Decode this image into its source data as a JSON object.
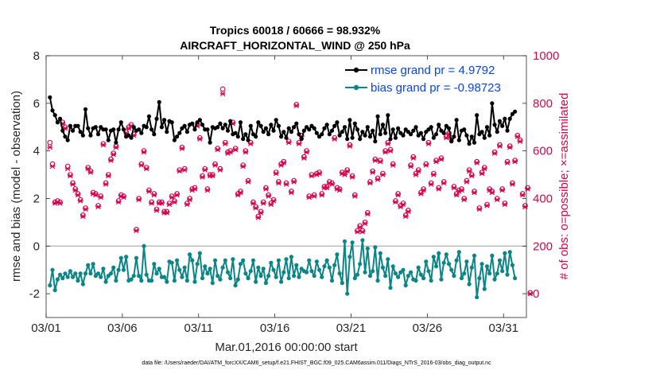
{
  "chart_data": {
    "type": "line",
    "title": "Tropics 60018 / 60666 = 98.932%",
    "subtitle": "AIRCRAFT_HORIZONTAL_WIND @ 250 hPa",
    "xlabel": "Mar.01,2016 00:00:00 start",
    "ylabel": "rmse and bias (model - observation)",
    "ylabel_right": "# of obs: o=possible; ×=assimilated",
    "ylim": [
      -3,
      8
    ],
    "yticks": [
      -2,
      0,
      2,
      4,
      6,
      8
    ],
    "ylim_right": [
      -100,
      1000
    ],
    "yticks_right": [
      0,
      200,
      400,
      600,
      800,
      1000
    ],
    "xlim": [
      0,
      31.5
    ],
    "xticks": [
      {
        "label": "03/01",
        "day": 0
      },
      {
        "label": "03/06",
        "day": 5
      },
      {
        "label": "03/11",
        "day": 10
      },
      {
        "label": "03/16",
        "day": 15
      },
      {
        "label": "03/21",
        "day": 20
      },
      {
        "label": "03/26",
        "day": 25
      },
      {
        "label": "03/31",
        "day": 30
      }
    ],
    "footnote": "data file: /Users/raeder/DAI/ATM_forcXX/CAM6_setup/f.e21.FHIST_BGC.f09_025.CAM6assim.011/Diags_NTrS_2016-03/obs_diag_output.nc",
    "series": [
      {
        "name": "rmse",
        "legend": "rmse grand pr = 4.9792",
        "color": "#000000",
        "axis": "left",
        "values": [
          6.25,
          5.7,
          5.5,
          5.2,
          5.35,
          4.85,
          4.6,
          4.45,
          5.05,
          4.85,
          5.05,
          5.05,
          4.8,
          4.65,
          5.75,
          4.95,
          4.65,
          4.95,
          5.0,
          4.7,
          5.0,
          4.9,
          4.9,
          4.45,
          4.85,
          4.9,
          4.35,
          4.9,
          5.2,
          4.9,
          4.6,
          4.65,
          4.55,
          5.0,
          4.85,
          4.9,
          4.75,
          5.05,
          5.0,
          5.45,
          4.9,
          4.7,
          5.35,
          6.05,
          5.0,
          5.3,
          4.8,
          5.25,
          5.2,
          4.45,
          4.6,
          4.75,
          4.95,
          5.05,
          4.8,
          5.1,
          5.15,
          4.9,
          5.2,
          5.3,
          5.1,
          4.9,
          4.9,
          4.35,
          5.0,
          4.95,
          5.0,
          5.15,
          4.95,
          5.1,
          4.85,
          5.25,
          4.7,
          4.75,
          4.6,
          5.2,
          4.5,
          4.7,
          4.45,
          5.05,
          4.7,
          4.6,
          5.2,
          5.05,
          4.8,
          4.95,
          4.7,
          5.1,
          4.85,
          5.3,
          5.05,
          4.6,
          4.8,
          4.55,
          4.95,
          4.8,
          5.0,
          5.15,
          4.7,
          4.5,
          4.85,
          5.0,
          4.9,
          5.05,
          4.95,
          4.75,
          4.6,
          4.7,
          4.95,
          5.1,
          4.7,
          4.85,
          5.05,
          5.2,
          4.65,
          4.8,
          5.0,
          4.5,
          5.3,
          4.55,
          5.15,
          4.9,
          4.5,
          4.8,
          4.65,
          5.0,
          4.6,
          4.85,
          4.4,
          5.45,
          4.7,
          5.1,
          4.75,
          5.5,
          4.5,
          4.9,
          4.55,
          4.95,
          4.75,
          4.65,
          4.9,
          4.8,
          4.7,
          4.85,
          5.0,
          4.65,
          4.75,
          4.5,
          4.8,
          4.9,
          5.0,
          4.55,
          4.7,
          5.1,
          4.85,
          4.75,
          5.05,
          4.95,
          4.4,
          4.6,
          5.3,
          4.45,
          4.85,
          4.9,
          4.65,
          4.3,
          4.6,
          4.35,
          5.5,
          4.7,
          4.8,
          4.55,
          5.0,
          4.65,
          6.0,
          5.1,
          4.8,
          5.25,
          5.05,
          5.35,
          4.85,
          5.35,
          5.55,
          5.65
        ]
      },
      {
        "name": "bias",
        "legend": "bias grand pr = -0.98723",
        "color": "#0b8585",
        "axis": "left",
        "values": [
          -1.65,
          -1.0,
          -1.85,
          -1.4,
          -1.2,
          -1.35,
          -1.15,
          -1.3,
          -1.05,
          -1.3,
          -1.15,
          -1.45,
          -1.15,
          -1.6,
          -1.15,
          -0.8,
          -1.15,
          -0.75,
          -1.25,
          -1.15,
          -1.3,
          -0.95,
          -1.5,
          -1.25,
          -1.15,
          -0.9,
          -1.45,
          -1.0,
          -0.5,
          -1.0,
          -0.45,
          -1.45,
          -1.4,
          -1.25,
          -0.5,
          -1.25,
          -1.45,
          0.0,
          -1.2,
          -1.45,
          -1.45,
          -0.75,
          -1.15,
          -0.95,
          -1.3,
          -1.3,
          -1.5,
          -0.65,
          -0.7,
          -1.45,
          -0.6,
          -1.0,
          -1.3,
          -0.9,
          -1.45,
          -0.35,
          -0.6,
          -1.5,
          -0.75,
          -0.3,
          -1.35,
          -0.85,
          -1.15,
          -0.95,
          -1.55,
          -0.6,
          -1.25,
          -1.4,
          -0.9,
          -0.6,
          -1.1,
          -1.35,
          -0.55,
          -1.65,
          -1.4,
          -0.75,
          -0.6,
          -1.15,
          -1.35,
          -1.05,
          -0.6,
          -1.5,
          -0.9,
          -1.25,
          -0.95,
          -1.55,
          -1.25,
          -0.7,
          -1.0,
          -1.3,
          -0.6,
          -1.5,
          -1.1,
          -0.55,
          -1.35,
          -0.45,
          -1.25,
          -0.8,
          -1.3,
          -0.95,
          -1.05,
          -1.1,
          -0.6,
          -1.05,
          -1.25,
          -0.65,
          -1.0,
          -1.3,
          -0.85,
          -0.6,
          -0.9,
          -1.45,
          -0.8,
          -0.35,
          -1.15,
          -1.55,
          0.2,
          -2.0,
          -0.45,
          0.15,
          -1.35,
          -1.2,
          -0.75,
          0.25,
          -1.1,
          -0.1,
          -1.25,
          -1.05,
          -0.05,
          -1.45,
          -0.3,
          -0.9,
          -1.25,
          -0.55,
          -1.75,
          -0.85,
          -1.15,
          -1.3,
          -1.1,
          -1.0,
          -1.65,
          -1.25,
          -1.1,
          -1.4,
          -1.45,
          -0.9,
          -1.2,
          -1.35,
          -0.65,
          -1.05,
          -1.45,
          -0.45,
          -0.85,
          -0.3,
          -1.4,
          -0.7,
          -0.35,
          -0.75,
          -1.0,
          -1.25,
          -0.6,
          -0.25,
          -1.35,
          -1.15,
          -0.65,
          -1.6,
          -0.9,
          -0.4,
          -2.15,
          -1.35,
          -0.75,
          -1.8,
          -0.85,
          -1.15,
          -0.4,
          -1.4,
          -1.15,
          -0.6,
          -1.05,
          -0.3,
          -1.2,
          -0.25,
          -0.8,
          -1.35
        ]
      },
      {
        "name": "obs possible",
        "marker": "o",
        "color": "#d6054f",
        "axis": "right",
        "values": [
          635,
          545,
          385,
          390,
          385,
          720,
          700,
          535,
          500,
          465,
          440,
          420,
          395,
          330,
          360,
          530,
          515,
          425,
          420,
          370,
          410,
          630,
          465,
          500,
          565,
          590,
          620,
          390,
          415,
          410,
          680,
          700,
          710,
          670,
          270,
          400,
          545,
          600,
          530,
          435,
          385,
          420,
          355,
          385,
          385,
          345,
          345,
          380,
          410,
          390,
          420,
          520,
          615,
          525,
          380,
          400,
          440,
          445,
          710,
          655,
          495,
          525,
          440,
          500,
          500,
          545,
          610,
          525,
          860,
          635,
          595,
          600,
          720,
          610,
          420,
          430,
          540,
          600,
          475,
          635,
          385,
          365,
          325,
          345,
          385,
          445,
          415,
          380,
          395,
          510,
          470,
          545,
          555,
          465,
          640,
          430,
          475,
          795,
          635,
          665,
          575,
          600,
          410,
          500,
          415,
          505,
          510,
          420,
          450,
          450,
          470,
          465,
          655,
          445,
          440,
          510,
          505,
          520,
          625,
          495,
          415,
          265,
          285,
          265,
          300,
          340,
          470,
          515,
          565,
          485,
          560,
          505,
          600,
          635,
          605,
          545,
          390,
          420,
          370,
          380,
          330,
          350,
          540,
          575,
          505,
          520,
          425,
          440,
          545,
          635,
          465,
          505,
          560,
          445,
          570,
          470,
          660,
          675,
          655,
          450,
          420,
          435,
          440,
          400,
          475,
          520,
          500,
          430,
          555,
          360,
          510,
          530,
          375,
          440,
          430,
          595,
          400,
          625,
          440,
          380,
          555,
          620,
          465,
          560,
          665,
          645,
          420,
          370,
          445,
          4
        ]
      },
      {
        "name": "obs assimilated",
        "marker": "x",
        "color": "#d6054f",
        "axis": "right",
        "values": [
          615,
          535,
          380,
          385,
          380,
          715,
          695,
          525,
          495,
          460,
          435,
          415,
          390,
          325,
          355,
          525,
          510,
          420,
          415,
          365,
          405,
          625,
          460,
          495,
          560,
          585,
          615,
          385,
          410,
          405,
          675,
          695,
          705,
          665,
          265,
          395,
          540,
          595,
          525,
          430,
          380,
          415,
          350,
          380,
          380,
          340,
          340,
          375,
          405,
          385,
          415,
          515,
          610,
          520,
          375,
          395,
          435,
          440,
          705,
          650,
          490,
          520,
          435,
          495,
          495,
          540,
          605,
          520,
          840,
          630,
          590,
          595,
          715,
          605,
          415,
          425,
          535,
          595,
          470,
          630,
          380,
          360,
          320,
          340,
          380,
          440,
          410,
          375,
          390,
          505,
          465,
          540,
          550,
          460,
          635,
          425,
          470,
          790,
          630,
          660,
          570,
          595,
          405,
          495,
          410,
          500,
          505,
          415,
          445,
          445,
          465,
          460,
          650,
          440,
          435,
          505,
          500,
          515,
          620,
          490,
          410,
          260,
          280,
          260,
          295,
          335,
          465,
          510,
          560,
          480,
          555,
          500,
          595,
          630,
          600,
          540,
          385,
          415,
          365,
          375,
          325,
          345,
          535,
          570,
          500,
          515,
          420,
          435,
          540,
          630,
          460,
          500,
          555,
          440,
          565,
          465,
          655,
          670,
          650,
          445,
          415,
          430,
          435,
          395,
          470,
          515,
          495,
          425,
          550,
          355,
          505,
          525,
          370,
          435,
          425,
          590,
          395,
          620,
          435,
          375,
          550,
          615,
          460,
          555,
          660,
          640,
          415,
          365,
          440,
          0
        ]
      }
    ]
  }
}
